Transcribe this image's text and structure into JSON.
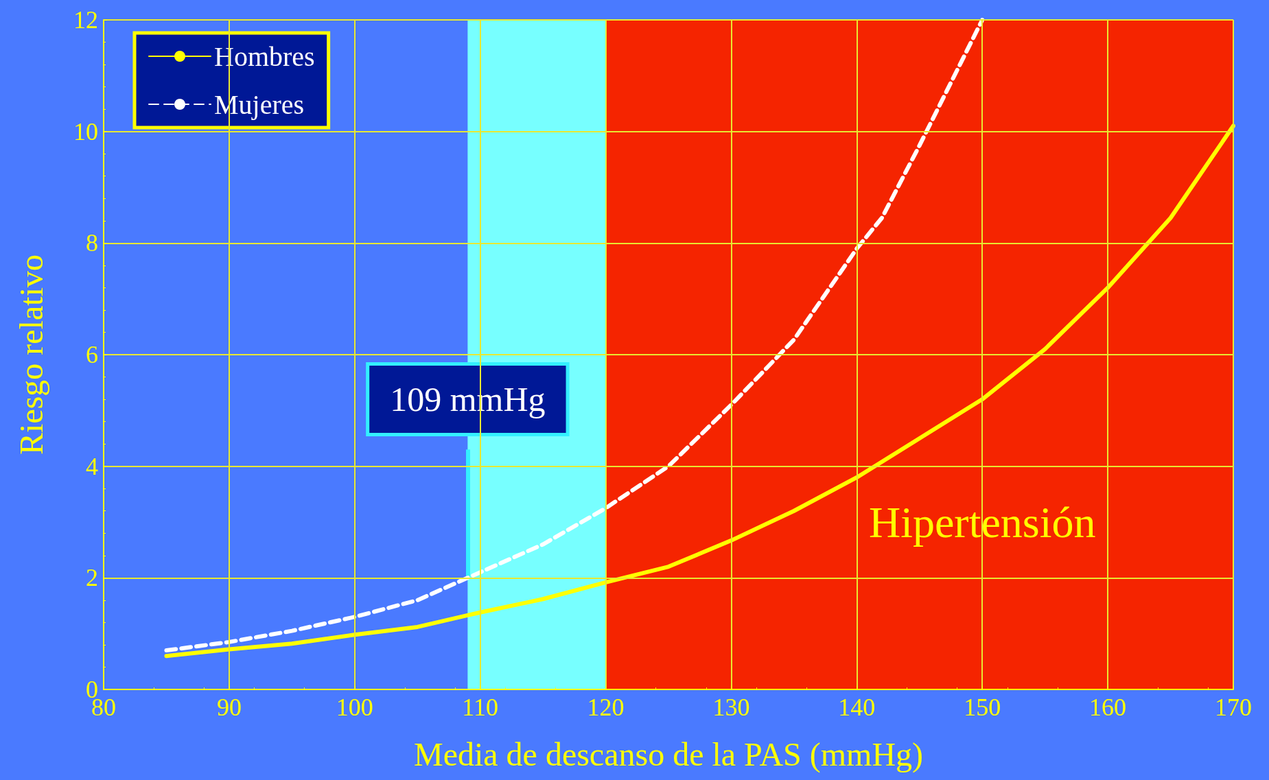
{
  "chart_data": {
    "type": "line",
    "xlabel": "Media de descanso de la PAS (mmHg)",
    "ylabel": "Riesgo relativo",
    "xlim": [
      80,
      170
    ],
    "xticks": [
      80,
      90,
      100,
      110,
      120,
      130,
      140,
      150,
      160,
      170
    ],
    "ylim": [
      0,
      12
    ],
    "yticks": [
      0,
      2,
      4,
      6,
      8,
      10,
      12
    ],
    "grid": true,
    "legend": "top left",
    "marker": "none",
    "series": [
      {
        "name": "Hombres",
        "color": "#ffff00",
        "line_style": "solid",
        "x": [
          85,
          90,
          95,
          100,
          105,
          109,
          110,
          115,
          120,
          125,
          130,
          135,
          140,
          145,
          150,
          155,
          160,
          165,
          170
        ],
        "values": [
          0.6,
          0.72,
          0.82,
          0.98,
          1.12,
          1.33,
          1.38,
          1.62,
          1.92,
          2.2,
          2.67,
          3.2,
          3.8,
          4.5,
          5.2,
          6.1,
          7.2,
          8.45,
          10.1
        ]
      },
      {
        "name": "Mujeres",
        "color": "#ffffff",
        "line_style": "dashed",
        "x": [
          85,
          90,
          95,
          100,
          105,
          109,
          110,
          115,
          120,
          125,
          130,
          135,
          140,
          142,
          145,
          150
        ],
        "values": [
          0.7,
          0.85,
          1.05,
          1.3,
          1.6,
          2.0,
          2.1,
          2.6,
          3.25,
          4.0,
          5.1,
          6.27,
          7.9,
          8.45,
          9.75,
          12
        ]
      }
    ],
    "bands": [
      {
        "axis": "x",
        "from": 109,
        "to": 120,
        "label": null,
        "color": "#77ffff"
      },
      {
        "axis": "x",
        "from": 120,
        "to": 170,
        "label": "Hipertensión",
        "color": "#f52400"
      }
    ],
    "annotations": [
      {
        "text": "109 mmHg",
        "x": 109,
        "y": 2
      }
    ]
  }
}
